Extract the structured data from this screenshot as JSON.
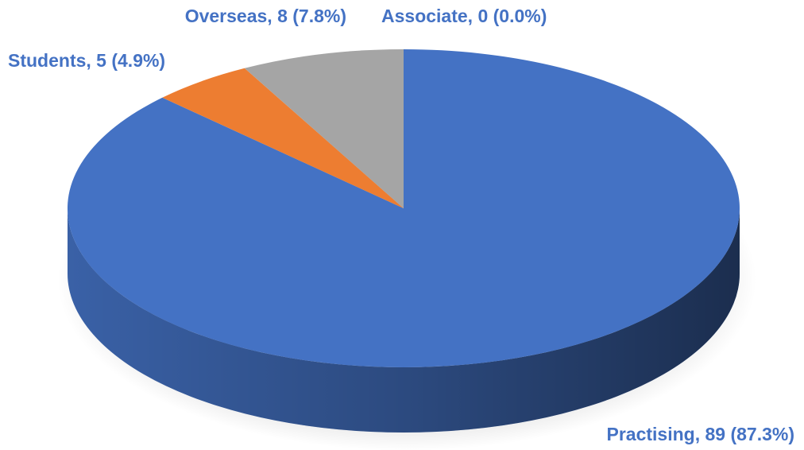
{
  "chart_data": {
    "type": "pie",
    "values": [
      89,
      5,
      8,
      0
    ],
    "value_labels": [
      "Practising, 89 (87.3%)",
      "Students, 5 (4.9%)",
      "Overseas, 8 (7.8%)",
      "Associate, 0 (0.0%)"
    ],
    "colors": [
      "#4472c4",
      "#ed7d31",
      "#a5a5a5",
      "#ffc000"
    ]
  }
}
